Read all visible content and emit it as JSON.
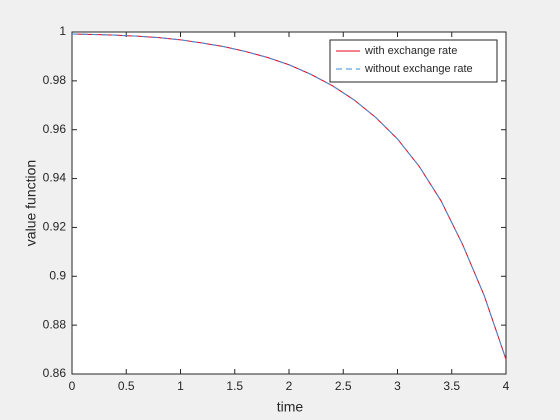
{
  "chart_data": {
    "type": "line",
    "x_label": "time",
    "y_label": "value function",
    "x": [
      0,
      0.2,
      0.4,
      0.6,
      0.8,
      1,
      1.2,
      1.4,
      1.6,
      1.8,
      2,
      2.2,
      2.4,
      2.6,
      2.8,
      3,
      3.2,
      3.4,
      3.6,
      3.8,
      4
    ],
    "series": [
      {
        "name": "with exchange rate",
        "color": "#e8001c",
        "linestyle": "solid",
        "values": [
          0.9992,
          0.999,
          0.9987,
          0.9983,
          0.9977,
          0.9968,
          0.9955,
          0.994,
          0.992,
          0.9896,
          0.9866,
          0.9827,
          0.978,
          0.9722,
          0.965,
          0.9562,
          0.945,
          0.931,
          0.913,
          0.892,
          0.866
        ]
      },
      {
        "name": "without exchange rate",
        "color": "#3a8fd9",
        "linestyle": "dashed",
        "values": [
          0.9992,
          0.999,
          0.9987,
          0.9983,
          0.9977,
          0.9968,
          0.9955,
          0.994,
          0.992,
          0.9896,
          0.9866,
          0.9827,
          0.978,
          0.9722,
          0.965,
          0.9562,
          0.945,
          0.931,
          0.913,
          0.892,
          0.866
        ]
      }
    ],
    "xlim": [
      0,
      4
    ],
    "xticks": [
      0,
      0.5,
      1,
      1.5,
      2,
      2.5,
      3,
      3.5,
      4
    ],
    "ylim": [
      0.86,
      1
    ],
    "yticks": [
      0.86,
      0.88,
      0.9,
      0.92,
      0.94,
      0.96,
      0.98,
      1
    ],
    "grid": false,
    "legend_position": "northeast"
  }
}
